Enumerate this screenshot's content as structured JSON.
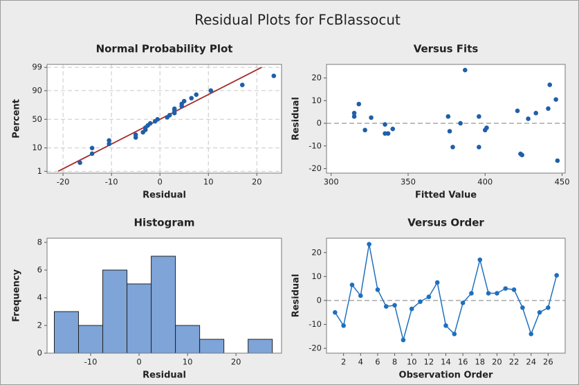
{
  "title": "Residual Plots for FcBlassocut",
  "chart_data": [
    {
      "type": "scatter",
      "title": "Normal Probability Plot",
      "xlabel": "Residual",
      "ylabel": "Percent",
      "yscale": "probability",
      "grid": true,
      "color": "#1f5fa8",
      "x": [
        -16.5,
        -14,
        -14,
        -10.5,
        -10.5,
        -5,
        -5,
        -3.5,
        -3,
        -3,
        -2.5,
        -2,
        -1,
        -0.5,
        1.5,
        2,
        3,
        3,
        3,
        4.5,
        4.5,
        5,
        6.5,
        7.5,
        10.5,
        17,
        23.5
      ],
      "values": [
        2.6,
        6.2,
        9.9,
        13.5,
        17.2,
        20.8,
        24.5,
        28.1,
        31.8,
        35.4,
        39.1,
        42.7,
        46.4,
        50.0,
        53.6,
        57.3,
        60.9,
        64.6,
        68.2,
        71.9,
        75.5,
        79.2,
        82.8,
        86.5,
        90.1,
        93.8,
        97.4
      ],
      "fit_line": {
        "x": [
          -21,
          21
        ],
        "y": [
          1,
          99
        ],
        "color": "#a52a2a"
      },
      "xlim": [
        -23.3,
        25.1
      ],
      "ylim": [
        0.8,
        99.3
      ],
      "xticks": [
        -20,
        -10,
        0,
        10,
        20
      ],
      "yticks": [
        1,
        10,
        50,
        90,
        99
      ]
    },
    {
      "type": "scatter",
      "title": "Versus Fits",
      "xlabel": "Fitted Value",
      "ylabel": "Residual",
      "color": "#1f5fa8",
      "x": [
        315,
        315,
        318,
        322,
        326,
        335,
        335,
        337,
        340,
        376,
        377,
        379,
        384,
        387,
        396,
        396,
        400,
        401,
        421,
        423,
        424,
        428,
        433,
        441,
        442,
        446,
        447
      ],
      "values": [
        3,
        4.5,
        8.5,
        -3,
        2.5,
        -0.5,
        -4.5,
        -4.5,
        -2.5,
        3,
        -3.5,
        -10.5,
        0,
        23.5,
        3,
        -10.5,
        -3,
        -2,
        5.5,
        -13.5,
        -14,
        2,
        4.5,
        6.5,
        17,
        10.5,
        -16.5
      ],
      "reference_line": 0,
      "xlim": [
        297,
        452
      ],
      "ylim": [
        -22,
        26
      ],
      "xticks": [
        300,
        350,
        400,
        450
      ],
      "yticks": [
        -20,
        -10,
        0,
        10,
        20
      ]
    },
    {
      "type": "histogram",
      "title": "Histogram",
      "xlabel": "Residual",
      "ylabel": "Frequency",
      "color": "#7ea4d8",
      "bins": [
        -17.5,
        -12.5,
        -7.5,
        -2.5,
        2.5,
        7.5,
        12.5,
        17.5,
        22.5,
        27.5
      ],
      "values": [
        3,
        2,
        6,
        5,
        7,
        2,
        1,
        0,
        1
      ],
      "xlim": [
        -19,
        29.4
      ],
      "ylim": [
        0,
        8.3
      ],
      "xticks": [
        -10,
        0,
        10,
        20
      ],
      "yticks": [
        0,
        2,
        4,
        6,
        8
      ]
    },
    {
      "type": "line",
      "title": "Versus Order",
      "xlabel": "Observation Order",
      "ylabel": "Residual",
      "color": "#1f6fbd",
      "x": [
        1,
        2,
        3,
        4,
        5,
        6,
        7,
        8,
        9,
        10,
        11,
        12,
        13,
        14,
        15,
        16,
        17,
        18,
        19,
        20,
        21,
        22,
        23,
        24,
        25,
        26,
        27
      ],
      "values": [
        -5,
        -10.5,
        6.5,
        2,
        23.5,
        4.5,
        -2.5,
        -2,
        -16.5,
        -3.5,
        -0.5,
        1.5,
        7.5,
        -10.5,
        -14,
        -1,
        3,
        17,
        3,
        3,
        5,
        4.5,
        -3,
        -14,
        -5,
        -3,
        10.5
      ],
      "reference_line": 0,
      "xlim": [
        0,
        28
      ],
      "ylim": [
        -22,
        26
      ],
      "xticks": [
        2,
        4,
        6,
        8,
        10,
        12,
        14,
        16,
        18,
        20,
        22,
        24,
        26
      ],
      "yticks": [
        -20,
        -10,
        0,
        10,
        20
      ]
    }
  ]
}
